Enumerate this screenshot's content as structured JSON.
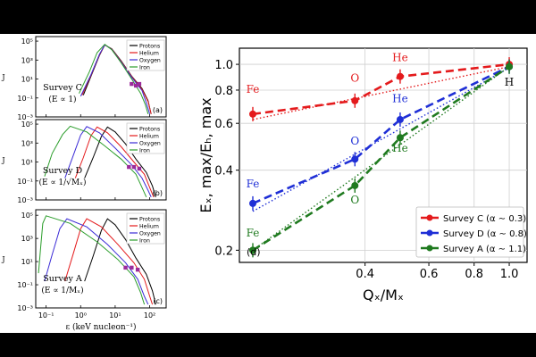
{
  "chart_data": [
    {
      "type": "line",
      "panel": "a",
      "panel_label": "(a)",
      "survey_label": "Survey C",
      "survey_sub": "(E ∝ 1)",
      "xscale": "log",
      "yscale": "log",
      "xlim": [
        0.05,
        300
      ],
      "ylim": [
        0.001,
        300000
      ],
      "y_ticks": [
        {
          "v": 100000,
          "label": "10⁵"
        },
        {
          "v": 1000,
          "label": "10³"
        },
        {
          "v": 10,
          "label": "10¹"
        },
        {
          "v": 0.1,
          "label": "10⁻¹"
        },
        {
          "v": 0.001,
          "label": "10⁻³"
        }
      ],
      "ylabel": "J",
      "legend": [
        "Protons",
        "Helium",
        "Oxygen",
        "Iron"
      ],
      "series": [
        {
          "name": "Protons",
          "color": "#000000",
          "points": [
            [
              1.2,
              0.2
            ],
            [
              2,
              20
            ],
            [
              3.5,
              3000
            ],
            [
              5,
              40000
            ],
            [
              8,
              15000
            ],
            [
              15,
              800
            ],
            [
              30,
              20
            ],
            [
              60,
              1
            ],
            [
              90,
              0.05
            ],
            [
              110,
              0.002
            ]
          ]
        },
        {
          "name": "Helium",
          "color": "#e41a1c",
          "points": [
            [
              1.1,
              0.2
            ],
            [
              2,
              25
            ],
            [
              3.5,
              3500
            ],
            [
              5,
              40000
            ],
            [
              8,
              14000
            ],
            [
              15,
              700
            ],
            [
              30,
              18
            ],
            [
              60,
              0.8
            ],
            [
              90,
              0.04
            ],
            [
              110,
              0.002
            ]
          ]
        },
        {
          "name": "Oxygen",
          "color": "#3b2bd6",
          "points": [
            [
              1.0,
              0.15
            ],
            [
              2,
              30
            ],
            [
              3.5,
              4000
            ],
            [
              5,
              42000
            ],
            [
              8,
              13000
            ],
            [
              15,
              600
            ],
            [
              30,
              15
            ],
            [
              60,
              0.6
            ],
            [
              80,
              0.03
            ],
            [
              100,
              0.002
            ]
          ]
        },
        {
          "name": "Iron",
          "color": "#2a9d2a",
          "points": [
            [
              0.9,
              0.3
            ],
            [
              1.8,
              60
            ],
            [
              3,
              6000
            ],
            [
              5,
              45000
            ],
            [
              8,
              12000
            ],
            [
              15,
              500
            ],
            [
              30,
              10
            ],
            [
              55,
              0.3
            ],
            [
              75,
              0.02
            ],
            [
              90,
              0.002
            ]
          ]
        }
      ],
      "markers": [
        [
          30,
          3
        ],
        [
          40,
          2
        ],
        [
          50,
          3
        ]
      ]
    },
    {
      "type": "line",
      "panel": "b",
      "panel_label": "(b)",
      "survey_label": "Survey D",
      "survey_sub": "(E ∝ 1/√Mₓ)",
      "xscale": "log",
      "yscale": "log",
      "xlim": [
        0.05,
        300
      ],
      "ylim": [
        0.001,
        300000
      ],
      "y_ticks": [
        {
          "v": 100000,
          "label": "10⁵"
        },
        {
          "v": 1000,
          "label": "10³"
        },
        {
          "v": 10,
          "label": "10¹"
        },
        {
          "v": 0.1,
          "label": "10⁻¹"
        },
        {
          "v": 0.001,
          "label": "10⁻³"
        }
      ],
      "ylabel": "J",
      "legend": [
        "Protons",
        "Helium",
        "Oxygen",
        "Iron"
      ],
      "series": [
        {
          "name": "Protons",
          "color": "#000000",
          "points": [
            [
              1.3,
              0.2
            ],
            [
              2.3,
              30
            ],
            [
              4,
              5000
            ],
            [
              6,
              50000
            ],
            [
              10,
              15000
            ],
            [
              20,
              800
            ],
            [
              40,
              20
            ],
            [
              80,
              0.8
            ],
            [
              120,
              0.03
            ],
            [
              150,
              0.002
            ]
          ]
        },
        {
          "name": "Helium",
          "color": "#e41a1c",
          "points": [
            [
              0.7,
              0.2
            ],
            [
              1.2,
              30
            ],
            [
              2,
              6000
            ],
            [
              3,
              50000
            ],
            [
              6,
              12000
            ],
            [
              15,
              400
            ],
            [
              35,
              10
            ],
            [
              70,
              0.5
            ],
            [
              100,
              0.02
            ],
            [
              130,
              0.002
            ]
          ]
        },
        {
          "name": "Oxygen",
          "color": "#3b2bd6",
          "points": [
            [
              0.35,
              0.2
            ],
            [
              0.6,
              40
            ],
            [
              1,
              7000
            ],
            [
              1.5,
              55000
            ],
            [
              3.5,
              12000
            ],
            [
              10,
              300
            ],
            [
              30,
              5
            ],
            [
              60,
              0.2
            ],
            [
              90,
              0.01
            ],
            [
              110,
              0.002
            ]
          ]
        },
        {
          "name": "Iron",
          "color": "#2a9d2a",
          "points": [
            [
              0.09,
              0.3
            ],
            [
              0.15,
              80
            ],
            [
              0.3,
              8000
            ],
            [
              0.5,
              60000
            ],
            [
              1.5,
              15000
            ],
            [
              5,
              500
            ],
            [
              15,
              20
            ],
            [
              40,
              0.5
            ],
            [
              60,
              0.02
            ],
            [
              80,
              0.002
            ]
          ]
        }
      ],
      "markers": [
        [
          25,
          3
        ],
        [
          35,
          3
        ],
        [
          50,
          2
        ]
      ]
    },
    {
      "type": "line",
      "panel": "c",
      "panel_label": "(c)",
      "survey_label": "Survey A",
      "survey_sub": "(E ∝ 1/Mₓ)",
      "xscale": "log",
      "yscale": "log",
      "xlim": [
        0.05,
        300
      ],
      "ylim": [
        0.001,
        300000
      ],
      "x_ticks": [
        {
          "v": 0.1,
          "label": "10⁻¹"
        },
        {
          "v": 1,
          "label": "10⁰"
        },
        {
          "v": 10,
          "label": "10¹"
        },
        {
          "v": 100,
          "label": "10²"
        }
      ],
      "y_ticks": [
        {
          "v": 100000,
          "label": "10⁵"
        },
        {
          "v": 1000,
          "label": "10³"
        },
        {
          "v": 10,
          "label": "10¹"
        },
        {
          "v": 0.1,
          "label": "10⁻¹"
        },
        {
          "v": 0.001,
          "label": "10⁻³"
        }
      ],
      "ylabel": "J",
      "xlabel": "ε (keV nucleon⁻¹)",
      "legend": [
        "Protons",
        "Helium",
        "Oxygen",
        "Iron"
      ],
      "series": [
        {
          "name": "Protons",
          "color": "#000000",
          "points": [
            [
              1.3,
              0.2
            ],
            [
              2.3,
              30
            ],
            [
              4,
              5000
            ],
            [
              6,
              50000
            ],
            [
              10,
              15000
            ],
            [
              20,
              800
            ],
            [
              40,
              20
            ],
            [
              80,
              0.8
            ],
            [
              120,
              0.03
            ],
            [
              150,
              0.002
            ]
          ]
        },
        {
          "name": "Helium",
          "color": "#e41a1c",
          "points": [
            [
              0.35,
              0.2
            ],
            [
              0.6,
              40
            ],
            [
              1,
              7000
            ],
            [
              1.5,
              50000
            ],
            [
              4,
              10000
            ],
            [
              12,
              300
            ],
            [
              35,
              8
            ],
            [
              70,
              0.3
            ],
            [
              100,
              0.01
            ],
            [
              120,
              0.002
            ]
          ]
        },
        {
          "name": "Oxygen",
          "color": "#3b2bd6",
          "points": [
            [
              0.09,
              0.2
            ],
            [
              0.15,
              40
            ],
            [
              0.25,
              7000
            ],
            [
              0.4,
              50000
            ],
            [
              1.5,
              10000
            ],
            [
              6,
              300
            ],
            [
              20,
              8
            ],
            [
              45,
              0.3
            ],
            [
              70,
              0.01
            ],
            [
              90,
              0.002
            ]
          ]
        },
        {
          "name": "Iron",
          "color": "#2a9d2a",
          "points": [
            [
              0.06,
              1
            ],
            [
              0.07,
              200
            ],
            [
              0.08,
              20000
            ],
            [
              0.1,
              90000
            ],
            [
              0.5,
              20000
            ],
            [
              3,
              500
            ],
            [
              12,
              15
            ],
            [
              35,
              0.5
            ],
            [
              55,
              0.02
            ],
            [
              70,
              0.002
            ]
          ]
        }
      ],
      "markers": [
        [
          20,
          3
        ],
        [
          30,
          3
        ],
        [
          45,
          2
        ]
      ]
    },
    {
      "type": "line",
      "panel": "d",
      "panel_label": "(d)",
      "xscale": "log",
      "yscale": "log",
      "xlim": [
        0.18,
        1.12
      ],
      "ylim": [
        0.18,
        1.15
      ],
      "xlabel": "Qₓ/Mₓ",
      "ylabel": "Eₓ, max/Eₕ, max",
      "x_ticks": [
        {
          "v": 0.4,
          "label": "0.4"
        },
        {
          "v": 0.6,
          "label": "0.6"
        },
        {
          "v": 0.8,
          "label": "0.8"
        },
        {
          "v": 1.0,
          "label": "1.0"
        }
      ],
      "y_ticks": [
        {
          "v": 0.2,
          "label": "0.2"
        },
        {
          "v": 0.4,
          "label": "0.4"
        },
        {
          "v": 0.6,
          "label": "0.6"
        },
        {
          "v": 0.8,
          "label": "0.8"
        },
        {
          "v": 1.0,
          "label": "1.0"
        }
      ],
      "series": [
        {
          "name": "Survey C (α ∼ 0.3)",
          "color": "#e41a1c",
          "x": [
            0.196,
            0.375,
            0.5,
            1.0
          ],
          "y": [
            0.65,
            0.73,
            0.9,
            1.0
          ],
          "fit": [
            [
              0.196,
              0.62
            ],
            [
              1.0,
              0.98
            ]
          ]
        },
        {
          "name": "Survey D (α ∼ 0.8)",
          "color": "#1f2fd6",
          "x": [
            0.196,
            0.375,
            0.5,
            1.0
          ],
          "y": [
            0.3,
            0.44,
            0.62,
            0.98
          ],
          "fit": [
            [
              0.196,
              0.28
            ],
            [
              1.0,
              0.97
            ]
          ]
        },
        {
          "name": "Survey A (α ∼ 1.1)",
          "color": "#1f7a1f",
          "x": [
            0.196,
            0.375,
            0.5,
            1.0
          ],
          "y": [
            0.2,
            0.35,
            0.53,
            0.98
          ],
          "fit": [
            [
              0.196,
              0.2
            ],
            [
              1.0,
              0.98
            ]
          ]
        }
      ],
      "annotations": [
        {
          "text": "Fe",
          "x": 0.196,
          "y": 0.78,
          "color": "#e41a1c"
        },
        {
          "text": "O",
          "x": 0.375,
          "y": 0.86,
          "color": "#e41a1c"
        },
        {
          "text": "He",
          "x": 0.5,
          "y": 1.03,
          "color": "#e41a1c"
        },
        {
          "text": "Fe",
          "x": 0.196,
          "y": 0.345,
          "color": "#1f2fd6"
        },
        {
          "text": "O",
          "x": 0.375,
          "y": 0.5,
          "color": "#1f2fd6"
        },
        {
          "text": "He",
          "x": 0.5,
          "y": 0.72,
          "color": "#1f2fd6"
        },
        {
          "text": "Fe",
          "x": 0.196,
          "y": 0.225,
          "color": "#1f7a1f"
        },
        {
          "text": "O",
          "x": 0.375,
          "y": 0.3,
          "color": "#1f7a1f"
        },
        {
          "text": "He",
          "x": 0.5,
          "y": 0.47,
          "color": "#1f7a1f"
        },
        {
          "text": "H",
          "x": 1.0,
          "y": 0.83,
          "color": "#000000"
        }
      ]
    }
  ]
}
